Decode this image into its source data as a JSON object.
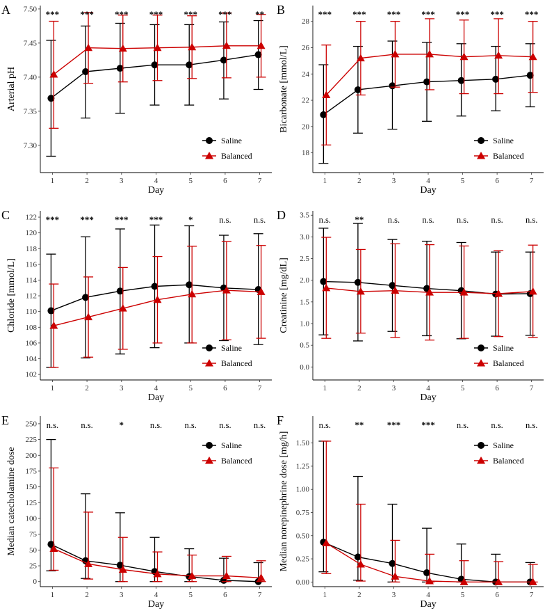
{
  "colors": {
    "saline": "#000000",
    "balanced": "#cc0000"
  },
  "chart_data": [
    {
      "type": "line",
      "panel": "A",
      "title": "",
      "xlabel": "Day",
      "ylabel": "Arterial pH",
      "x": [
        1,
        2,
        3,
        4,
        5,
        6,
        7
      ],
      "xlim": [
        0.65,
        7.35
      ],
      "ylim": [
        7.26,
        7.505
      ],
      "yticks": [
        7.3,
        7.35,
        7.4,
        7.45,
        7.5
      ],
      "ytick_labels": [
        "7.30",
        "7.35",
        "7.40",
        "7.45",
        "7.50"
      ],
      "series": [
        {
          "name": "Saline",
          "marker": "circle",
          "values": [
            7.369,
            7.408,
            7.413,
            7.418,
            7.418,
            7.425,
            7.433
          ],
          "lower": [
            7.284,
            7.34,
            7.347,
            7.359,
            7.359,
            7.368,
            7.382
          ],
          "upper": [
            7.454,
            7.475,
            7.479,
            7.477,
            7.477,
            7.481,
            7.483
          ]
        },
        {
          "name": "Balanced",
          "marker": "triangle",
          "values": [
            7.404,
            7.443,
            7.442,
            7.443,
            7.444,
            7.446,
            7.446
          ],
          "lower": [
            7.325,
            7.391,
            7.393,
            7.395,
            7.398,
            7.399,
            7.4
          ],
          "upper": [
            7.482,
            7.495,
            7.491,
            7.491,
            7.49,
            7.494,
            7.492
          ]
        }
      ],
      "significance": [
        "***",
        "***",
        "***",
        "***",
        "***",
        "***",
        "**"
      ],
      "legend": [
        "Saline",
        "Balanced"
      ]
    },
    {
      "type": "line",
      "panel": "B",
      "title": "",
      "xlabel": "Day",
      "ylabel": "Bicarbonate [mmol/L]",
      "x": [
        1,
        2,
        3,
        4,
        5,
        6,
        7
      ],
      "xlim": [
        0.65,
        7.35
      ],
      "ylim": [
        16.5,
        29.2
      ],
      "yticks": [
        18,
        20,
        22,
        24,
        26,
        28
      ],
      "ytick_labels": [
        "18",
        "20",
        "22",
        "24",
        "26",
        "28"
      ],
      "series": [
        {
          "name": "Saline",
          "marker": "circle",
          "values": [
            20.9,
            22.8,
            23.1,
            23.4,
            23.5,
            23.6,
            23.9
          ],
          "lower": [
            17.2,
            19.5,
            19.8,
            20.4,
            20.8,
            21.2,
            21.5
          ],
          "upper": [
            24.7,
            26.1,
            26.5,
            26.4,
            26.3,
            26.1,
            26.3
          ]
        },
        {
          "name": "Balanced",
          "marker": "triangle",
          "values": [
            22.4,
            25.2,
            25.5,
            25.5,
            25.3,
            25.4,
            25.3
          ],
          "lower": [
            18.6,
            22.4,
            23.0,
            22.8,
            22.5,
            22.5,
            22.6
          ],
          "upper": [
            26.2,
            28.0,
            28.0,
            28.2,
            28.1,
            28.2,
            28.0
          ]
        }
      ],
      "significance": [
        "***",
        "***",
        "***",
        "***",
        "***",
        "***",
        "***"
      ],
      "legend": [
        "Saline",
        "Balanced"
      ]
    },
    {
      "type": "line",
      "panel": "C",
      "title": "",
      "xlabel": "Day",
      "ylabel": "Chloride [mmol/L]",
      "x": [
        1,
        2,
        3,
        4,
        5,
        6,
        7
      ],
      "xlim": [
        0.65,
        7.35
      ],
      "ylim": [
        101.3,
        122.8
      ],
      "yticks": [
        102,
        104,
        106,
        108,
        110,
        112,
        114,
        116,
        118,
        120,
        122
      ],
      "ytick_labels": [
        "102",
        "104",
        "106",
        "108",
        "110",
        "112",
        "114",
        "116",
        "118",
        "120",
        "122"
      ],
      "series": [
        {
          "name": "Saline",
          "marker": "circle",
          "values": [
            110.1,
            111.8,
            112.6,
            113.2,
            113.4,
            113.0,
            112.8
          ],
          "lower": [
            102.9,
            104.1,
            104.6,
            105.4,
            106.0,
            106.3,
            105.8
          ],
          "upper": [
            117.3,
            119.5,
            120.5,
            121.0,
            120.9,
            119.7,
            119.9
          ]
        },
        {
          "name": "Balanced",
          "marker": "triangle",
          "values": [
            108.2,
            109.3,
            110.4,
            111.5,
            112.2,
            112.7,
            112.5
          ],
          "lower": [
            102.9,
            104.2,
            105.2,
            106.0,
            106.0,
            106.4,
            106.6
          ],
          "upper": [
            113.5,
            114.4,
            115.6,
            117.0,
            118.3,
            118.9,
            118.4
          ]
        }
      ],
      "significance": [
        "***",
        "***",
        "***",
        "***",
        "*",
        "n.s.",
        "n.s."
      ],
      "legend": [
        "Saline",
        "Balanced"
      ]
    },
    {
      "type": "line",
      "panel": "D",
      "title": "",
      "xlabel": "Day",
      "ylabel": "Creatinine [mg/dL]",
      "x": [
        1,
        2,
        3,
        4,
        5,
        6,
        7
      ],
      "xlim": [
        0.65,
        7.35
      ],
      "ylim": [
        -0.3,
        3.6
      ],
      "yticks": [
        0.0,
        0.5,
        1.0,
        1.5,
        2.0,
        2.5,
        3.0,
        3.5
      ],
      "ytick_labels": [
        "0.0",
        "0.5",
        "1.0",
        "1.5",
        "2.0",
        "2.5",
        "3.0",
        "3.5"
      ],
      "series": [
        {
          "name": "Saline",
          "marker": "circle",
          "values": [
            1.97,
            1.95,
            1.88,
            1.81,
            1.76,
            1.68,
            1.69
          ],
          "lower": [
            0.74,
            0.6,
            0.82,
            0.72,
            0.65,
            0.71,
            0.73
          ],
          "upper": [
            3.2,
            3.31,
            2.94,
            2.9,
            2.87,
            2.65,
            2.65
          ]
        },
        {
          "name": "Balanced",
          "marker": "triangle",
          "values": [
            1.82,
            1.74,
            1.76,
            1.72,
            1.72,
            1.69,
            1.74
          ],
          "lower": [
            0.66,
            0.78,
            0.68,
            0.62,
            0.66,
            0.7,
            0.68
          ],
          "upper": [
            2.99,
            2.71,
            2.84,
            2.82,
            2.79,
            2.68,
            2.81
          ]
        }
      ],
      "significance": [
        "n.s.",
        "**",
        "n.s.",
        "n.s.",
        "n.s.",
        "n.s.",
        "n.s."
      ],
      "legend": [
        "Saline",
        "Balanced"
      ]
    },
    {
      "type": "line",
      "panel": "E",
      "title": "",
      "xlabel": "Day",
      "ylabel": "Median catecholamine dose",
      "x": [
        1,
        2,
        3,
        4,
        5,
        6,
        7
      ],
      "xlim": [
        0.65,
        7.35
      ],
      "ylim": [
        -8,
        262
      ],
      "yticks": [
        0,
        25,
        50,
        75,
        100,
        125,
        150,
        175,
        200,
        225,
        250
      ],
      "ytick_labels": [
        "0",
        "25",
        "50",
        "75",
        "100",
        "125",
        "150",
        "175",
        "200",
        "225",
        "250"
      ],
      "series": [
        {
          "name": "Saline",
          "marker": "circle",
          "values": [
            59,
            33,
            26,
            16,
            8,
            2,
            0
          ],
          "lower": [
            17,
            5,
            0,
            0,
            0,
            0,
            0
          ],
          "upper": [
            225,
            139,
            109,
            70,
            52,
            37,
            30
          ]
        },
        {
          "name": "Balanced",
          "marker": "triangle",
          "values": [
            52,
            28,
            19,
            12,
            9,
            9,
            6
          ],
          "lower": [
            18,
            4,
            0,
            0,
            0,
            0,
            0
          ],
          "upper": [
            180,
            110,
            70,
            47,
            42,
            40,
            33
          ]
        }
      ],
      "significance": [
        "n.s.",
        "n.s.",
        "*",
        "n.s.",
        "n.s.",
        "n.s.",
        "n.s."
      ],
      "legend": [
        "Saline",
        "Balanced"
      ]
    },
    {
      "type": "line",
      "panel": "F",
      "title": "",
      "xlabel": "Day",
      "ylabel": "Median norepinephrine dose [mg/h]",
      "x": [
        1,
        2,
        3,
        4,
        5,
        6,
        7
      ],
      "xlim": [
        0.65,
        7.35
      ],
      "ylim": [
        -0.05,
        1.79
      ],
      "yticks": [
        0.0,
        0.25,
        0.5,
        0.75,
        1.0,
        1.25,
        1.5
      ],
      "ytick_labels": [
        "0.00",
        "0.25",
        "0.50",
        "0.75",
        "1.00",
        "1.25",
        "1.50"
      ],
      "series": [
        {
          "name": "Saline",
          "marker": "circle",
          "values": [
            0.43,
            0.27,
            0.2,
            0.1,
            0.03,
            0.0,
            0.0
          ],
          "lower": [
            0.11,
            0.02,
            0.0,
            0.0,
            0.0,
            0.0,
            0.0
          ],
          "upper": [
            1.52,
            1.14,
            0.84,
            0.58,
            0.41,
            0.3,
            0.21
          ]
        },
        {
          "name": "Balanced",
          "marker": "triangle",
          "values": [
            0.42,
            0.19,
            0.06,
            0.01,
            0.0,
            0.0,
            0.0
          ],
          "lower": [
            0.09,
            0.01,
            0.0,
            0.0,
            0.0,
            0.0,
            0.0
          ],
          "upper": [
            1.52,
            0.84,
            0.45,
            0.3,
            0.23,
            0.22,
            0.19
          ]
        }
      ],
      "significance": [
        "n.s.",
        "**",
        "***",
        "***",
        "n.s.",
        "n.s.",
        "n.s."
      ],
      "legend": [
        "Saline",
        "Balanced"
      ]
    }
  ]
}
